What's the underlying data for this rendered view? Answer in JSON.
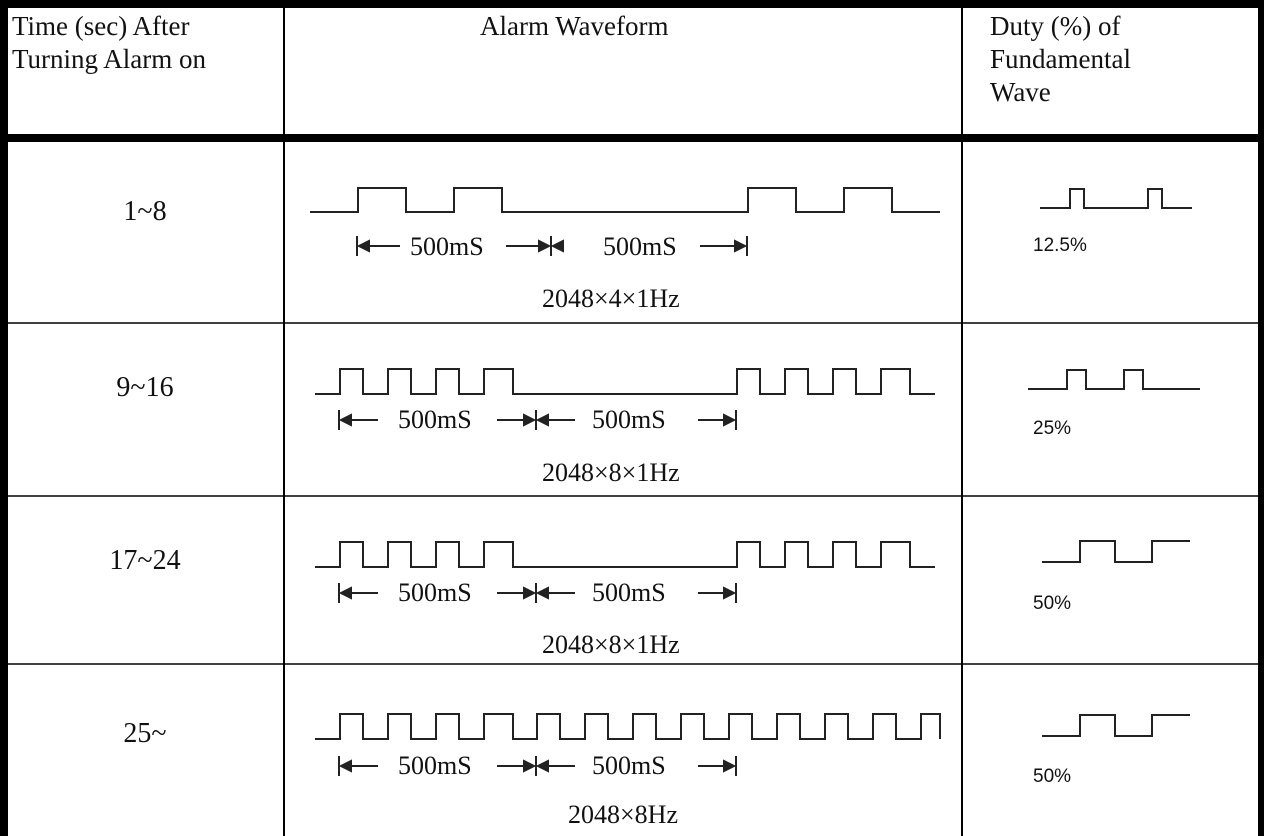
{
  "header": {
    "col_time": [
      "Time (sec) After",
      "Turning Alarm on"
    ],
    "col_waveform": "Alarm Waveform",
    "col_duty": [
      "Duty (%) of",
      "Fundamental",
      "Wave"
    ]
  },
  "rows": [
    {
      "time": "1~8",
      "interval_1": "500mS",
      "interval_2": "500mS",
      "formula": "2048×4×1Hz",
      "duty": "12.5%"
    },
    {
      "time": "9~16",
      "interval_1": "500mS",
      "interval_2": "500mS",
      "formula": "2048×8×1Hz",
      "duty": "25%"
    },
    {
      "time": "17~24",
      "interval_1": "500mS",
      "interval_2": "500mS",
      "formula": "2048×8×1Hz",
      "duty": "50%"
    },
    {
      "time": "25~",
      "interval_1": "500mS",
      "interval_2": "500mS",
      "formula": "2048×8Hz",
      "duty": "50%"
    }
  ]
}
